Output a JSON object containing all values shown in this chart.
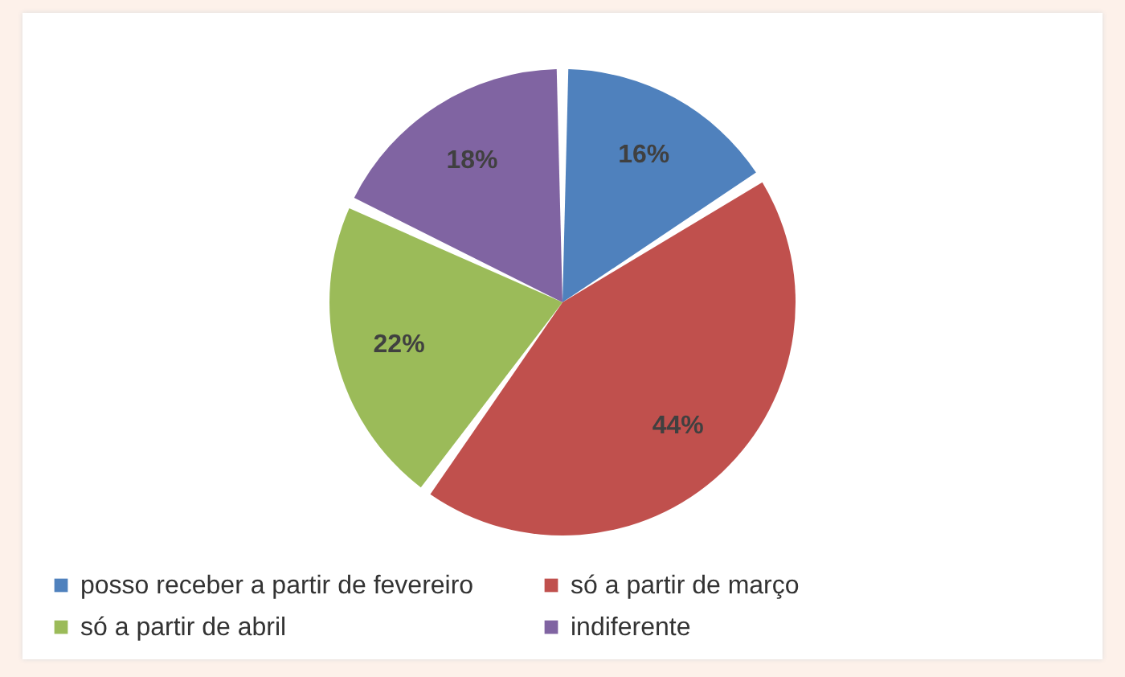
{
  "chart_data": {
    "type": "pie",
    "categories": [
      "posso receber a partir de fevereiro",
      "só a partir de março",
      "só a partir de abril",
      "indiferente"
    ],
    "values": [
      16,
      44,
      22,
      18
    ],
    "colors": [
      "#4f81bd",
      "#c0504d",
      "#9bbb59",
      "#8064a2"
    ],
    "value_labels": [
      "16%",
      "44%",
      "22%",
      "18%"
    ],
    "legend": "bottom"
  }
}
